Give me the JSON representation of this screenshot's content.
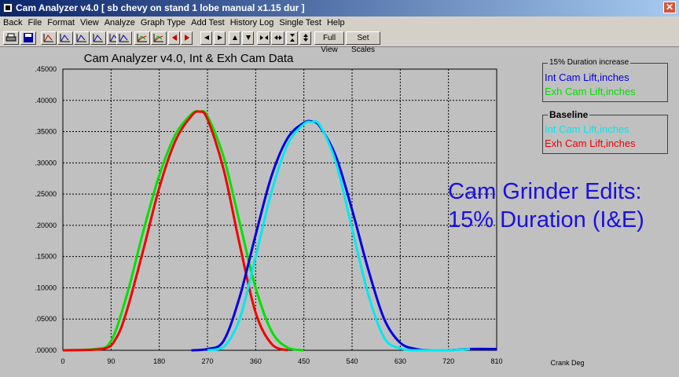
{
  "window": {
    "title": "Cam Analyzer v4.0  [ sb chevy on stand 1 lobe manual x1.15 dur ]",
    "close_glyph": "✕"
  },
  "menu": [
    "Back",
    "File",
    "Format",
    "View",
    "Analyze",
    "Graph Type",
    "Add Test",
    "History Log",
    "Single Test",
    "Help"
  ],
  "toolbar": {
    "full_view_label": "Full View",
    "set_scales_label": "Set Scales"
  },
  "chart": {
    "title": "Cam Analyzer v4.0,   Int & Exh Cam Data",
    "xlabel": "Crank Deg",
    "colors": {
      "int_test": "#0000e0",
      "exh_test": "#00e000",
      "int_base": "#00e8f0",
      "exh_base": "#f00000",
      "plot_bg": "#c0c0c0"
    }
  },
  "legend_test": {
    "caption": "15% Duration increase",
    "int_label": "Int Cam Lift,inches",
    "exh_label": "Exh Cam Lift,inches"
  },
  "legend_base": {
    "caption": "Baseline",
    "int_label": "Int Cam Lift,inches",
    "exh_label": "Exh Cam Lift,inches"
  },
  "annotation": {
    "line1": "Cam Grinder Edits:",
    "line2": "15% Duration (I&E)"
  },
  "chart_data": {
    "type": "line",
    "title": "Cam Analyzer v4.0,   Int & Exh Cam Data",
    "xlabel": "Crank Deg",
    "ylabel": "",
    "xlim": [
      0,
      810
    ],
    "ylim": [
      0,
      0.45
    ],
    "x_ticks": [
      "0",
      "90",
      "180",
      "270",
      "360",
      "450",
      "540",
      "630",
      "720",
      "810"
    ],
    "y_ticks": [
      ".00000",
      ".05000",
      ".10000",
      ".15000",
      ".20000",
      ".25000",
      ".30000",
      ".35000",
      ".40000",
      ".45000"
    ],
    "grid": true,
    "series": [
      {
        "name": "Exh Cam Lift,inches",
        "group": "15% Duration increase",
        "color": "#00e000",
        "x": [
          0,
          60,
          90,
          120,
          150,
          180,
          210,
          240,
          255,
          270,
          300,
          330,
          360,
          390,
          420,
          450
        ],
        "y": [
          0,
          0.002,
          0.015,
          0.09,
          0.19,
          0.28,
          0.345,
          0.378,
          0.382,
          0.375,
          0.31,
          0.205,
          0.1,
          0.03,
          0.004,
          0
        ]
      },
      {
        "name": "Exh Cam Lift,inches",
        "group": "Baseline",
        "color": "#f00000",
        "x": [
          0,
          75,
          100,
          120,
          150,
          180,
          210,
          240,
          255,
          270,
          300,
          330,
          360,
          390,
          420
        ],
        "y": [
          0,
          0.002,
          0.02,
          0.065,
          0.16,
          0.26,
          0.335,
          0.375,
          0.382,
          0.37,
          0.29,
          0.17,
          0.06,
          0.01,
          0
        ]
      },
      {
        "name": "Int Cam Lift,inches",
        "group": "15% Duration increase",
        "color": "#0000e0",
        "x": [
          240,
          270,
          300,
          330,
          360,
          390,
          420,
          450,
          465,
          480,
          510,
          540,
          570,
          600,
          630,
          660,
          690,
          720,
          760,
          810
        ],
        "y": [
          0,
          0.002,
          0.015,
          0.085,
          0.185,
          0.28,
          0.34,
          0.364,
          0.366,
          0.358,
          0.31,
          0.225,
          0.13,
          0.05,
          0.012,
          0.002,
          0,
          0,
          0.002,
          0.002
        ]
      },
      {
        "name": "Int Cam Lift,inches",
        "group": "Baseline",
        "color": "#00e8f0",
        "x": [
          270,
          300,
          330,
          360,
          390,
          420,
          450,
          465,
          480,
          510,
          540,
          570,
          600,
          630,
          660,
          720,
          760
        ],
        "y": [
          0,
          0.005,
          0.05,
          0.15,
          0.255,
          0.33,
          0.362,
          0.365,
          0.36,
          0.3,
          0.195,
          0.09,
          0.02,
          0.003,
          0,
          0,
          0.002
        ]
      }
    ]
  }
}
